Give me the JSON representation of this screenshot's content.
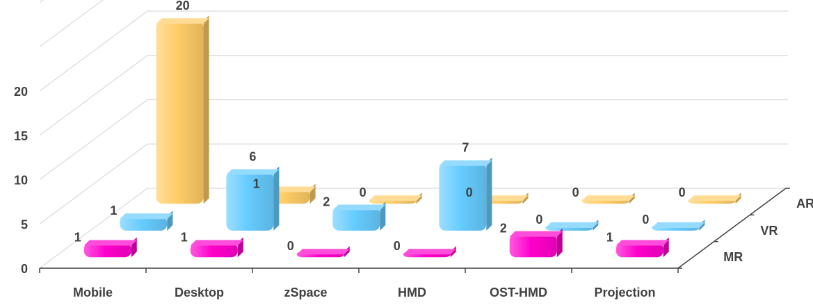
{
  "chart_data": {
    "type": "bar",
    "subtype": "3d-column",
    "title": "",
    "categories": [
      "Mobile",
      "Desktop",
      "zSpace",
      "HMD",
      "OST-HMD",
      "Projection"
    ],
    "series": [
      {
        "name": "MR",
        "color": "#ff00cc",
        "values": [
          1,
          1,
          0,
          0,
          2,
          1
        ]
      },
      {
        "name": "VR",
        "color": "#66ccff",
        "values": [
          1,
          6,
          2,
          7,
          0,
          0
        ]
      },
      {
        "name": "AR",
        "color": "#ffcc66",
        "values": [
          20,
          1,
          0,
          0,
          0,
          0
        ]
      }
    ],
    "yticks": [
      0,
      5,
      10,
      15,
      20
    ],
    "ylim": [
      0,
      20
    ],
    "grid": true,
    "data_labels": true,
    "depth_axis_labels": [
      "MR",
      "VR",
      "AR"
    ]
  }
}
